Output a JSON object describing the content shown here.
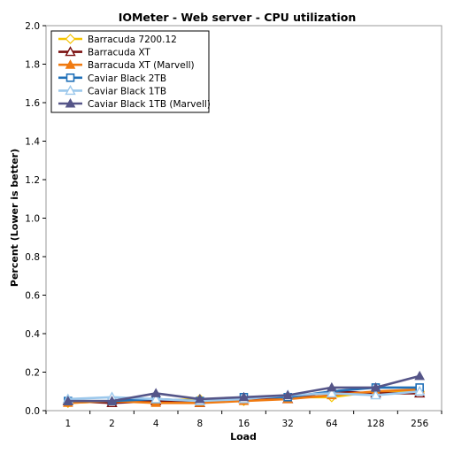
{
  "chart_data": {
    "type": "line",
    "title": "IOMeter - Web server - CPU utilization",
    "xlabel": "Load",
    "ylabel": "Percent (Lower is better)",
    "categories": [
      "1",
      "2",
      "4",
      "8",
      "16",
      "32",
      "64",
      "128",
      "256"
    ],
    "ylim": [
      0,
      2.0
    ],
    "yticks": [
      "0.0",
      "0.2",
      "0.4",
      "0.6",
      "0.8",
      "1.0",
      "1.2",
      "1.4",
      "1.6",
      "1.8",
      "2.0"
    ],
    "grid": "none",
    "legend_position": "top-left",
    "series": [
      {
        "name": "Barracuda 7200.12",
        "color": "#f5c400",
        "marker": "diamond",
        "values": [
          0.04,
          0.05,
          0.05,
          0.06,
          0.05,
          0.07,
          0.07,
          0.1,
          0.1
        ]
      },
      {
        "name": "Barracuda XT",
        "color": "#7a1010",
        "marker": "triangle-open",
        "values": [
          0.05,
          0.04,
          0.05,
          0.04,
          0.06,
          0.06,
          0.1,
          0.09,
          0.09
        ]
      },
      {
        "name": "Barracuda XT (Marvell)",
        "color": "#f07a10",
        "marker": "triangle",
        "values": [
          0.04,
          0.05,
          0.04,
          0.04,
          0.05,
          0.06,
          0.08,
          0.1,
          0.11
        ]
      },
      {
        "name": "Caviar Black 2TB",
        "color": "#2070b8",
        "marker": "square-open",
        "values": [
          0.05,
          0.05,
          0.06,
          0.05,
          0.07,
          0.07,
          0.1,
          0.12,
          0.12
        ]
      },
      {
        "name": "Caviar Black 1TB",
        "color": "#9cc8ec",
        "marker": "triangle-open",
        "values": [
          0.06,
          0.07,
          0.06,
          0.05,
          0.06,
          0.08,
          0.09,
          0.08,
          0.1
        ]
      },
      {
        "name": "Caviar Black 1TB (Marvell)",
        "color": "#555588",
        "marker": "triangle",
        "values": [
          0.05,
          0.05,
          0.09,
          0.06,
          0.07,
          0.08,
          0.12,
          0.12,
          0.18
        ]
      }
    ]
  }
}
